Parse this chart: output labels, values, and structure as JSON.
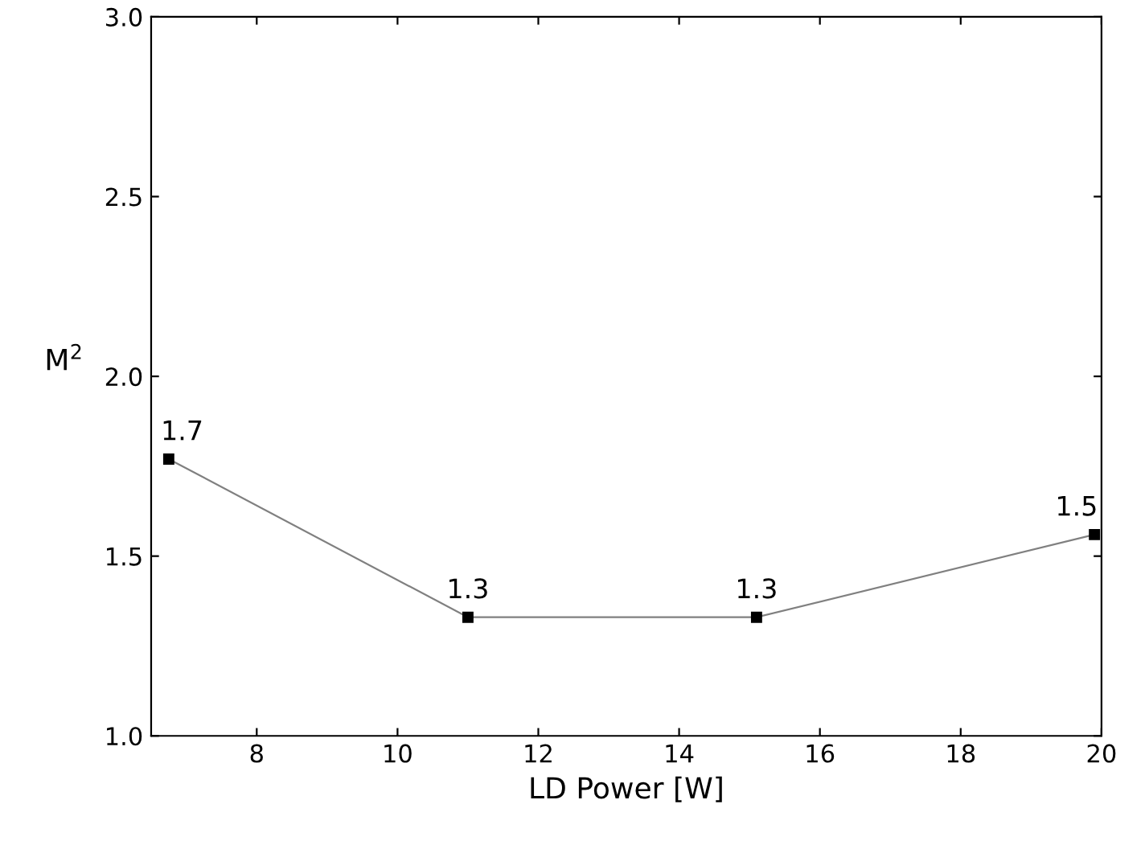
{
  "chart_data": {
    "type": "line",
    "xlabel": "LD Power [W]",
    "ylabel": "M$^{2}$",
    "x": [
      6.75,
      11.0,
      15.1,
      19.9
    ],
    "series": [
      {
        "color": "#000000",
        "values": [
          1.77,
          1.33,
          1.33,
          1.56
        ]
      }
    ],
    "annotations": [
      {
        "text": "1.7",
        "x": 6.75,
        "y": 1.77
      },
      {
        "text": "1.3",
        "x": 11.0,
        "y": 1.33
      },
      {
        "text": "1.3",
        "x": 15.1,
        "y": 1.33
      },
      {
        "text": "1.5",
        "x": 19.9,
        "y": 1.56
      }
    ],
    "xlim": [
      6.5,
      20
    ],
    "ylim": [
      1.0,
      3.0
    ],
    "xticks": [
      8,
      10,
      12,
      14,
      16,
      18,
      20
    ],
    "yticks": [
      {
        "value": 1.0,
        "label": "1.0"
      },
      {
        "value": 1.5,
        "label": "1.5"
      },
      {
        "value": 2.0,
        "label": "2.0"
      },
      {
        "value": 2.5,
        "label": "2.5"
      },
      {
        "value": 3.0,
        "label": "3.0"
      }
    ],
    "marker": "square",
    "line_style": "solid",
    "grid": false,
    "legend": false
  }
}
